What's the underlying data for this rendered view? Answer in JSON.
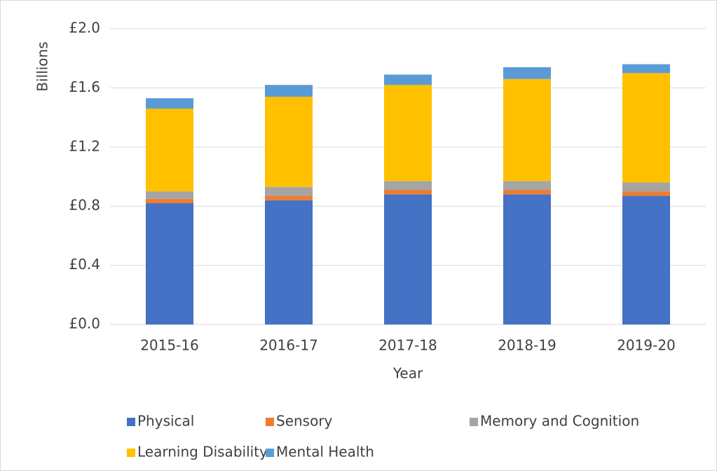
{
  "chart_data": {
    "type": "stacked_bar",
    "x_label": "Year",
    "y_label": "Billions",
    "categories": [
      "2015-16",
      "2016-17",
      "2017-18",
      "2018-19",
      "2019-20"
    ],
    "series": [
      {
        "name": "Physical",
        "color": "#4472c4",
        "values": [
          0.82,
          0.84,
          0.88,
          0.88,
          0.87
        ]
      },
      {
        "name": "Sensory",
        "color": "#ed7d31",
        "values": [
          0.03,
          0.03,
          0.03,
          0.03,
          0.03
        ]
      },
      {
        "name": "Memory and Cognition",
        "color": "#a5a5a5",
        "values": [
          0.05,
          0.06,
          0.06,
          0.06,
          0.06
        ]
      },
      {
        "name": "Learning Disability",
        "color": "#ffc000",
        "values": [
          0.56,
          0.61,
          0.65,
          0.69,
          0.74
        ]
      },
      {
        "name": "Mental Health",
        "color": "#5b9bd5",
        "values": [
          0.07,
          0.08,
          0.07,
          0.08,
          0.06
        ]
      }
    ],
    "ylim": [
      0,
      2.0
    ],
    "yticks": [
      {
        "value": 0,
        "label": "£0.0"
      },
      {
        "value": 0.4,
        "label": "£0.4"
      },
      {
        "value": 0.8,
        "label": "£0.8"
      },
      {
        "value": 1.2,
        "label": "£1.2"
      },
      {
        "value": 1.6,
        "label": "£1.6"
      },
      {
        "value": 2.0,
        "label": "£2.0"
      }
    ],
    "grid": true,
    "legend": "bottom"
  }
}
